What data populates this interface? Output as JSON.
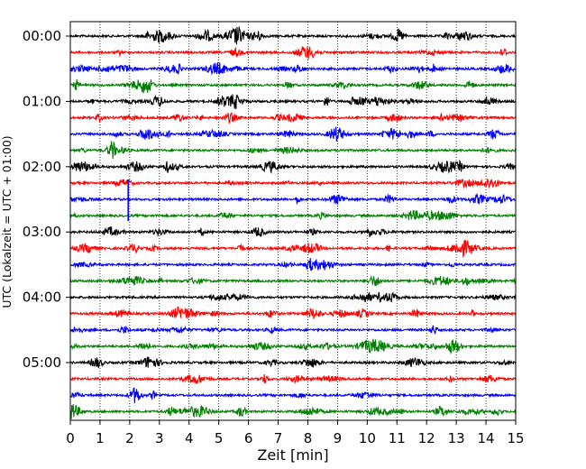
{
  "chart_data": {
    "type": "line",
    "title": "",
    "xlabel": "Zeit  [min]",
    "ylabel": "UTC (Lokalzeit = UTC + 01:00)",
    "xlim": [
      0,
      15
    ],
    "x_ticks": [
      "0",
      "1",
      "2",
      "3",
      "4",
      "5",
      "6",
      "7",
      "8",
      "9",
      "10",
      "11",
      "12",
      "13",
      "14",
      "15"
    ],
    "y_ticks": [
      "00:00",
      "01:00",
      "02:00",
      "03:00",
      "04:00",
      "05:00"
    ],
    "grid": "vertical dotted at each minute",
    "trace_colors": [
      "#000000",
      "#ff0000",
      "#0000ff",
      "#008000"
    ],
    "trace_interval_min": 15,
    "trace_count": 24,
    "notable_event": {
      "trace_index": 10,
      "minute": 1.95,
      "color": "#0000ff"
    }
  }
}
